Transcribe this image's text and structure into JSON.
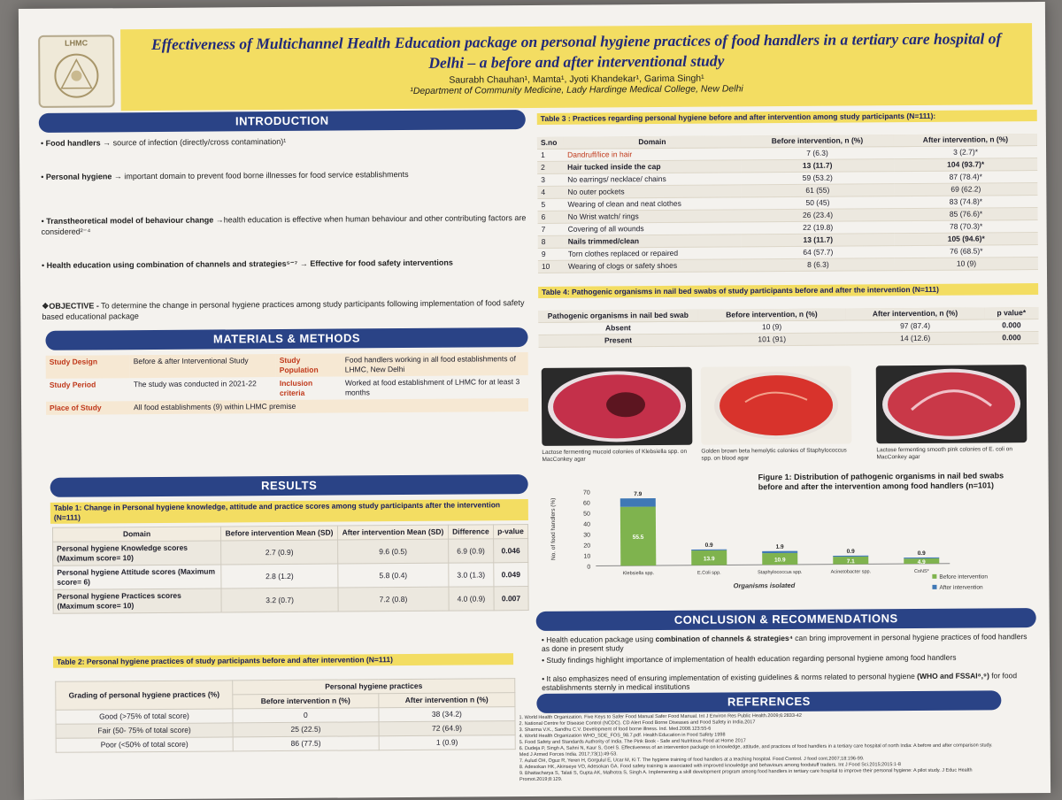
{
  "title": "Effectiveness of Multichannel Health Education package on personal hygiene practices of food handlers in a tertiary care hospital of Delhi – a before and after interventional study",
  "authors": "Saurabh Chauhan¹, Mamta¹, Jyoti Khandekar¹, Garima Singh¹",
  "department": "¹Department of Community Medicine, Lady Hardinge Medical College, New Delhi",
  "logo_text": "LHMC",
  "sections": {
    "introduction": "INTRODUCTION",
    "methods": "MATERIALS & METHODS",
    "results": "RESULTS",
    "conclusion": "CONCLUSION & RECOMMENDATIONS",
    "references": "REFERENCES"
  },
  "intro": [
    {
      "bold": "Food handlers →",
      "text": " source of infection (directly/cross contamination)¹"
    },
    {
      "bold": "Personal hygiene →",
      "text": " important domain to prevent food borne illnesses for food service establishments"
    },
    {
      "bold": "Transtheoretical model of behaviour change →",
      "text": "health education is effective when human behaviour and other contributing factors are considered²⁻⁴"
    },
    {
      "bold": "Health education using combination of channels and strategies⁵⁻⁷ → Effective for food safety interventions",
      "text": ""
    }
  ],
  "objective": {
    "label": "❖OBJECTIVE -",
    "text": " To determine the change in personal hygiene practices among study participants following implementation of food safety based educational package"
  },
  "methods": [
    [
      "Study Design",
      "Before & after Interventional Study",
      "Study Population",
      "Food handlers working in all food establishments of LHMC, New Delhi"
    ],
    [
      "Study Period",
      "The study was conducted in 2021-22",
      "Inclusion criteria",
      "Worked at food establishment of LHMC for at least 3 months"
    ],
    [
      "Place of Study",
      "All food establishments (9) within LHMC premise",
      "",
      ""
    ]
  ],
  "table1": {
    "caption": "Table 1: Change in Personal hygiene knowledge, attitude and practice scores among study participants after the intervention (N=111)",
    "headers": [
      "Domain",
      "Before intervention Mean (SD)",
      "After intervention Mean (SD)",
      "Difference",
      "p-value"
    ],
    "rows": [
      [
        "Personal hygiene Knowledge scores (Maximum score= 10)",
        "2.7 (0.9)",
        "9.6 (0.5)",
        "6.9 (0.9)",
        "0.046"
      ],
      [
        "Personal hygiene Attitude scores (Maximum score= 6)",
        "2.8 (1.2)",
        "5.8 (0.4)",
        "3.0 (1.3)",
        "0.049"
      ],
      [
        "Personal hygiene Practices scores (Maximum score= 10)",
        "3.2 (0.7)",
        "7.2 (0.8)",
        "4.0 (0.9)",
        "0.007"
      ]
    ]
  },
  "table2": {
    "caption": "Table 2: Personal hygiene practices of study participants before and after intervention (N=111)",
    "headers": [
      "Grading of personal hygiene practices (%)",
      "Personal hygiene practices",
      "Before intervention n (%)",
      "After intervention n (%)"
    ],
    "rows": [
      [
        "Good (>75% of total score)",
        "0",
        "38 (34.2)"
      ],
      [
        "Fair (50- 75% of total score)",
        "25 (22.5)",
        "72 (64.9)"
      ],
      [
        "Poor (<50% of total score)",
        "86 (77.5)",
        "1 (0.9)"
      ]
    ]
  },
  "table3": {
    "caption": "Table 3 : Practices regarding personal hygiene before and after intervention among study participants (N=111):",
    "headers": [
      "S.no",
      "Domain",
      "Before intervention, n (%)",
      "After intervention, n (%)"
    ],
    "rows": [
      [
        "1",
        "Dandruff/lice in hair",
        "7 (6.3)",
        "3 (2.7)*"
      ],
      [
        "2",
        "Hair tucked inside the cap",
        "13 (11.7)",
        "104 (93.7)*"
      ],
      [
        "3",
        "No earrings/ necklace/ chains",
        "59 (53.2)",
        "87 (78.4)*"
      ],
      [
        "4",
        "No outer pockets",
        "61 (55)",
        "69 (62.2)"
      ],
      [
        "5",
        "Wearing of clean and neat clothes",
        "50 (45)",
        "83 (74.8)*"
      ],
      [
        "6",
        "No Wrist watch/ rings",
        "26 (23.4)",
        "85 (76.6)*"
      ],
      [
        "7",
        "Covering of all wounds",
        "22 (19.8)",
        "78 (70.3)*"
      ],
      [
        "8",
        "Nails trimmed/clean",
        "13 (11.7)",
        "105 (94.6)*"
      ],
      [
        "9",
        "Torn clothes replaced or repaired",
        "64 (57.7)",
        "76 (68.5)*"
      ],
      [
        "10",
        "Wearing of clogs or safety shoes",
        "8 (6.3)",
        "10 (9)"
      ]
    ]
  },
  "table4": {
    "caption": "Table 4: Pathogenic organisms in nail bed swabs of study participants before and after the intervention (N=111)",
    "headers": [
      "Pathogenic organisms in nail bed swab",
      "Before intervention, n (%)",
      "After intervention, n (%)",
      "p value*"
    ],
    "rows": [
      [
        "Absent",
        "10 (9)",
        "97 (87.4)",
        "0.000"
      ],
      [
        "Present",
        "101 (91)",
        "14 (12.6)",
        "0.000"
      ]
    ]
  },
  "photos": [
    {
      "caption": "Lactose fermenting mucoid colonies of Klebsiella spp. on MacConkey agar",
      "color": "#c4304a"
    },
    {
      "caption": "Golden brown beta hemolytic colonies of Staphylococcus spp. on blood agar",
      "color": "#d8332c"
    },
    {
      "caption": "Lactose fermenting smooth pink colonies of E. coli on MacConkey agar",
      "color": "#c93848"
    }
  ],
  "figure1_caption": "Figure 1: Distribution of pathogenic organisms in nail bed swabs before and after the intervention among food handlers (n=101)",
  "chart_data": {
    "type": "bar",
    "title": "Figure 1: Distribution of pathogenic organisms in nail bed swabs before and after the intervention among food handlers (n=101)",
    "xlabel": "Organisms isolated",
    "ylabel": "No. of food handlers (%)",
    "ylim": [
      0,
      70
    ],
    "yticks": [
      "0",
      "10",
      "20",
      "30",
      "40",
      "50",
      "60",
      "70"
    ],
    "categories": [
      "Klebsiella spp.",
      "E.Coli spp.",
      "Staphylococcus spp.",
      "Acinetobacter spp.",
      "CoNS*"
    ],
    "series": [
      {
        "name": "Before intervention",
        "values": [
          55.5,
          13.9,
          10.9,
          7.1,
          4.9
        ],
        "color": "#7fb34e"
      },
      {
        "name": "After intervention",
        "values": [
          7.9,
          0.9,
          1.9,
          0.9,
          0.9
        ],
        "color": "#3f78b5"
      }
    ],
    "labels": [
      [
        "55.5",
        "7.9"
      ],
      [
        "13.9",
        "0.9"
      ],
      [
        "10.9",
        "1.9"
      ],
      [
        "7.1",
        "0.9"
      ],
      [
        "4.9",
        "0.9"
      ]
    ],
    "legend": "bottom-right"
  },
  "conclusion": [
    {
      "text": "Health education package using ",
      "bold": "combination of channels & strategies⁴",
      "tail": " can bring improvement in personal hygiene practices of food handlers as done in present study"
    },
    {
      "text": "Study findings highlight importance of implementation of health education regarding personal hygiene among food handlers",
      "bold": "",
      "tail": ""
    },
    {
      "text": "It also emphasizes need of ensuring implementation of existing guidelines & norms related to personal hygiene ",
      "bold": "(WHO and FSSAI⁸,⁹)",
      "tail": " for food establishments sternly in medical institutions"
    }
  ],
  "references": [
    "1. World Health Organization. Five Keys to Safer Food Manual Safer Food Manual. Int J Environ Res Public Health.2009;6:2833-42",
    "2. National Centre for Disease Control (NCDC). CD Alert Food Borne Diseases and Food Safety in India.2017",
    "3. Sharma V.K., Sandhu C.V. Development of food borne illness. Ind. Med.2008.123:55-6",
    "4. World Health Organization WHO_SDE_FOS_98.7.pdf. Health Education in Food Safety 1998",
    "5. Food Safety and Standards Authority of India. The Pink Book - Safe and Nutritious Food at Home 2017",
    "6. Dudeja P, Singh A, Sahni N, Kaur S, Goel S. Effectiveness of an intervention package on knowledge, attitude, and practices of food handlers in a tertiary care hospital of north India: A before and after comparison study. Med J Armed Forces India. 2017;73(1):49-53.",
    "7. Aulud OH, Oguz R, Yeren H, Gorgulul E, Ucar M, Ki T. The hygiene training of food handlers at a teaching hospital. Food Control. J food cont.2007;18:196-99.",
    "8. Adesokan HK, Akinseye VO, Adesokan GA. Food safety training is associated with improved knowledge and behaviours among foodstuff traders. Int J Food Sci.2015;2015:1-8",
    "9. Bhattacharya S, Talati S, Gupta AK, Malhotra S, Singh A. Implementing a skill development program among food handlers in tertiary care hospital to improve their personal hygiene: A pilot study. J Educ Health Promot.2019;8:129."
  ]
}
